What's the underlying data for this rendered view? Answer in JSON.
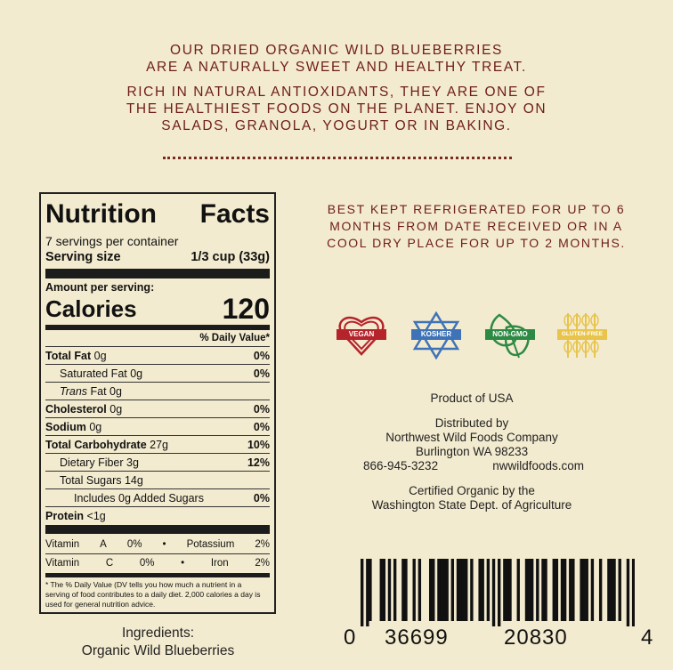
{
  "intro": {
    "line1": "OUR DRIED ORGANIC WILD BLUEBERRIES",
    "line2": "ARE A NATURALLY SWEET AND HEALTHY TREAT.",
    "line3": "RICH IN NATURAL ANTIOXIDANTS, THEY ARE ONE OF",
    "line4": "THE HEALTHIEST FOODS ON THE PLANET. ENJOY ON",
    "line5": "SALADS, GRANOLA, YOGURT OR IN BAKING."
  },
  "storage": {
    "line1": "BEST KEPT REFRIGERATED FOR UP TO 6",
    "line2": "MONTHS FROM DATE RECEIVED OR IN A",
    "line3": "COOL DRY PLACE FOR UP TO 2 MONTHS."
  },
  "nutrition": {
    "title_left": "Nutrition",
    "title_right": "Facts",
    "servings": "7 servings per container",
    "serving_size_label": "Serving size",
    "serving_size": "1/3 cup (33g)",
    "amount_per": "Amount per serving:",
    "calories_label": "Calories",
    "calories": "120",
    "dv_header": "% Daily Value*",
    "rows": [
      {
        "label": "Total Fat",
        "amount": "0g",
        "dv": "0%"
      },
      {
        "label": "Saturated Fat",
        "amount": "0g",
        "dv": "0%"
      },
      {
        "label": "Trans",
        "amount": "Fat 0g",
        "dv": ""
      },
      {
        "label": "Cholesterol",
        "amount": "0g",
        "dv": "0%"
      },
      {
        "label": "Sodium",
        "amount": "0g",
        "dv": "0%"
      },
      {
        "label": "Total Carbohydrate",
        "amount": "27g",
        "dv": "10%"
      },
      {
        "label": "Dietary Fiber",
        "amount": "3g",
        "dv": "12%"
      },
      {
        "label": "Total Sugars",
        "amount": "14g",
        "dv": ""
      },
      {
        "label": "Includes 0g Added Sugars",
        "amount": "",
        "dv": "0%"
      },
      {
        "label": "Protein",
        "amount": "<1g",
        "dv": ""
      }
    ],
    "vitamins": [
      {
        "a": "Vitamin",
        "b": "A",
        "c": "0%",
        "d": "•",
        "e": "Potassium",
        "f": "2%"
      },
      {
        "a": "Vitamin",
        "b": "C",
        "c": "0%",
        "d": "•",
        "e": "Iron",
        "f": "2%"
      }
    ],
    "footnote": "* The % Daily Value (DV tells you  how much a nutrient in a serving of food contributes to a daily diet. 2,000 calories a day is used for general nutrition advice."
  },
  "ingredients": {
    "label": "Ingredients:",
    "value": "Organic Wild Blueberries"
  },
  "badges": [
    {
      "label": "VEGAN",
      "color": "#b5232b",
      "icon": "heart-icon"
    },
    {
      "label": "KOSHER",
      "color": "#3f73b8",
      "icon": "star-of-david-icon"
    },
    {
      "label": "NON-GMO",
      "color": "#2d8a44",
      "icon": "leaf-icon"
    },
    {
      "label": "GLUTEN-FREE",
      "color": "#e8c44c",
      "icon": "wheat-icon"
    }
  ],
  "company": {
    "origin": "Product of USA",
    "distributed": "Distributed by",
    "name": "Northwest Wild Foods Company",
    "city": "Burlington WA 98233",
    "phone": "866-945-3232",
    "web": "nwwildfoods.com",
    "cert1": "Certified Organic by the",
    "cert2": "Washington State Dept. of Agriculture"
  },
  "barcode": {
    "d0": "0",
    "d1": "36699",
    "d2": "20830",
    "d3": "4"
  }
}
